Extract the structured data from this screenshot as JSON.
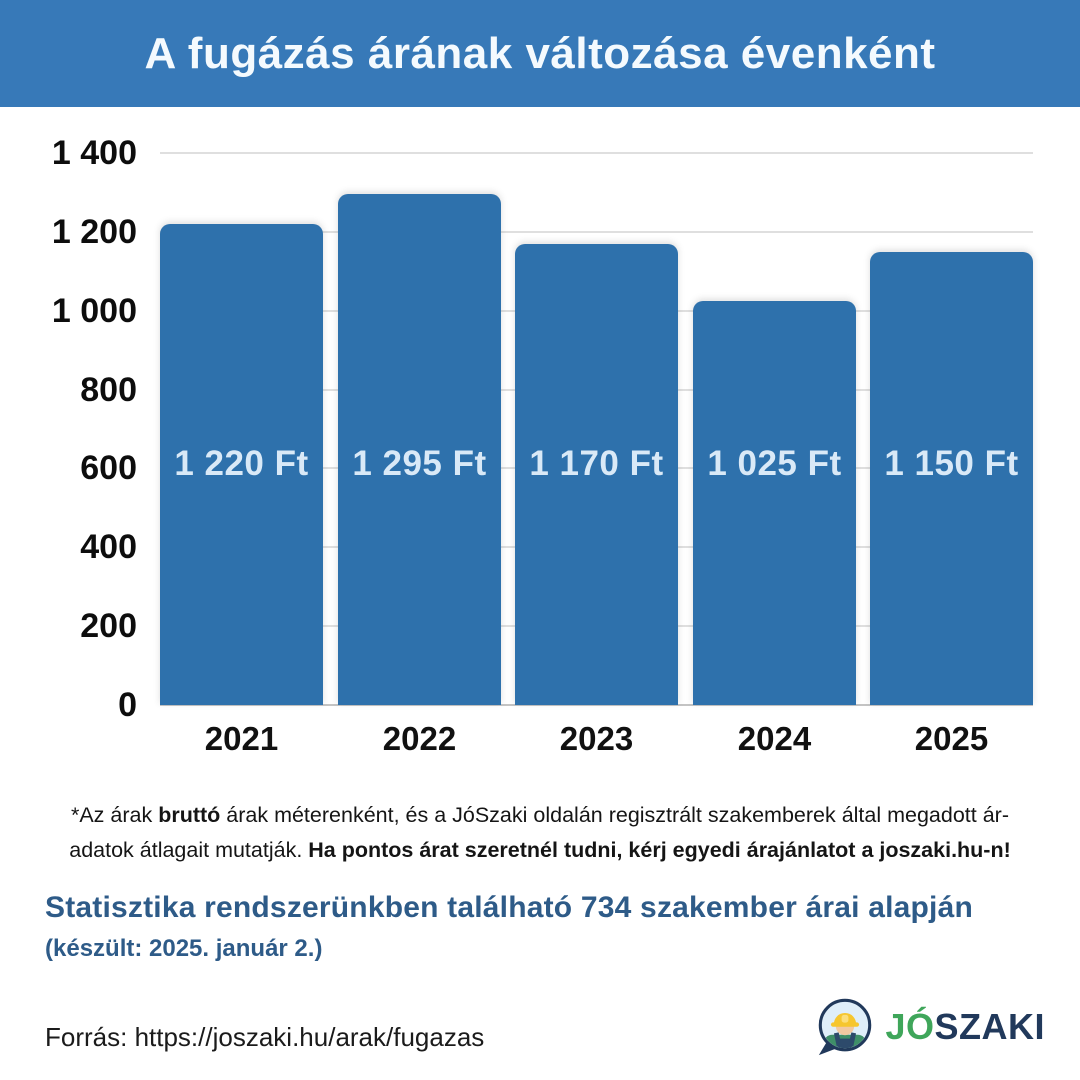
{
  "header": {
    "title": "A fugázás árának változása évenként"
  },
  "chart_data": {
    "type": "bar",
    "title": "A fugázás árának változása évenként",
    "categories": [
      "2021",
      "2022",
      "2023",
      "2024",
      "2025"
    ],
    "values": [
      1220,
      1295,
      1170,
      1025,
      1150
    ],
    "bar_labels": [
      "1 220 Ft",
      "1 295 Ft",
      "1 170 Ft",
      "1 025 Ft",
      "1 150 Ft"
    ],
    "unit": "Ft",
    "yticks": [
      0,
      200,
      400,
      600,
      800,
      1000,
      1200,
      1400
    ],
    "ytick_labels": [
      "0",
      "200",
      "400",
      "600",
      "800",
      "1 000",
      "1 200",
      "1 400"
    ],
    "ylim": [
      0,
      1400
    ],
    "xlabel": "",
    "ylabel": "",
    "grid": true,
    "legend": false
  },
  "footnote": {
    "line1_start": "*Az árak ",
    "line1_bold": "bruttó",
    "line1_end": " árak méterenként, és a JóSzaki oldalán regisztrált szakemberek által megadott ár-",
    "line2_start": "adatok átlagait mutatják. ",
    "line2_bold": "Ha pontos árat szeretnél tudni, kérj egyedi árajánlatot a joszaki.hu-n!"
  },
  "stats": {
    "line1": "Statisztika rendszerünkben található 734 szakember árai alapján",
    "line2": "(készült: 2025. január 2.)"
  },
  "source": {
    "label": "Forrás: https://joszaki.hu/arak/fugazas"
  },
  "logo": {
    "jo": "JÓ",
    "szaki": "SZAKI"
  },
  "colors": {
    "header_bg": "#3779B8",
    "bar": "#2E71AC",
    "bar_label": "#D9E9F7",
    "stats_text": "#2E5B88",
    "logo_green": "#3FA65A",
    "logo_navy": "#21395B",
    "gridline": "#DFDFDF",
    "axis_line": "#C4C4C4"
  }
}
